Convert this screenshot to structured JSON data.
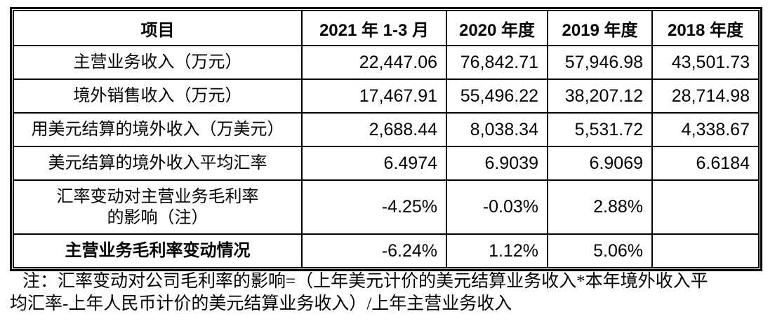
{
  "document": {
    "table": {
      "header": {
        "item": "项目",
        "col_2021": "2021 年 1-3 月",
        "col_2020": "2020 年度",
        "col_2019": "2019 年度",
        "col_2018": "2018 年度"
      },
      "rows": [
        {
          "label": "主营业务收入（万元）",
          "values": [
            "22,447.06",
            "76,842.71",
            "57,946.98",
            "43,501.73"
          ]
        },
        {
          "label": "境外销售收入（万元）",
          "values": [
            "17,467.91",
            "55,496.22",
            "38,207.12",
            "28,714.98"
          ]
        },
        {
          "label": "用美元结算的境外收入（万美元）",
          "values": [
            "2,688.44",
            "8,038.34",
            "5,531.72",
            "4,338.67"
          ]
        },
        {
          "label": "美元结算的境外收入平均汇率",
          "values": [
            "6.4974",
            "6.9039",
            "6.9069",
            "6.6184"
          ]
        },
        {
          "label": "汇率变动对主营业务毛利率\n的影响（注）",
          "values": [
            "-4.25%",
            "-0.03%",
            "2.88%",
            ""
          ]
        },
        {
          "label": "主营业务毛利率变动情况",
          "values": [
            "-6.24%",
            "1.12%",
            "5.06%",
            ""
          ]
        }
      ],
      "colors": {
        "border": "#000000",
        "text": "#000000",
        "background": "#ffffff"
      }
    },
    "note": {
      "lines": [
        "注：汇率变动对公司毛利率的影响=（上年美元计价的美元结算业务收入*本年境外收入平",
        "均汇率-上年人民币计价的美元结算业务收入）/上年主营业务收入"
      ]
    }
  }
}
